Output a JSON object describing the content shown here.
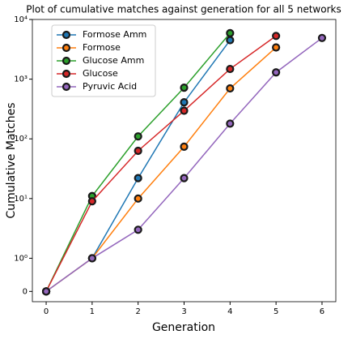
{
  "chart_data": {
    "type": "line",
    "title": "Plot of cumulative matches against generation for all 5 networks",
    "xlabel": "Generation",
    "ylabel": "Cumulative Matches",
    "x": [
      0,
      1,
      2,
      3,
      4,
      5,
      6
    ],
    "series": [
      {
        "name": "Formose Amm",
        "color": "#1f77b4",
        "values": [
          0,
          1,
          22,
          410,
          4500,
          null,
          null
        ]
      },
      {
        "name": "Formose",
        "color": "#ff7f0e",
        "values": [
          0,
          1,
          10,
          74,
          700,
          3400,
          null
        ]
      },
      {
        "name": "Glucose Amm",
        "color": "#2ca02c",
        "values": [
          0,
          11,
          110,
          720,
          5900,
          null,
          null
        ]
      },
      {
        "name": "Glucose",
        "color": "#d62728",
        "values": [
          0,
          9,
          63,
          296,
          1480,
          5300,
          null
        ]
      },
      {
        "name": "Pyruvic Acid",
        "color": "#9467bd",
        "values": [
          0,
          1,
          3,
          22,
          180,
          1300,
          4900
        ]
      }
    ],
    "xlim": [
      -0.3,
      6.3
    ],
    "xticks": [
      0,
      1,
      2,
      3,
      4,
      5,
      6
    ],
    "yscale": "symlog",
    "linthresh": 1,
    "linscale": 0.5,
    "ylim": [
      -0.31,
      10000
    ],
    "yticks": [
      0,
      {
        "value": 1,
        "label": "10⁰"
      },
      {
        "value": 10,
        "label": "10¹"
      },
      {
        "value": 100,
        "label": "10²"
      },
      {
        "value": 1000,
        "label": "10³"
      },
      {
        "value": 10000,
        "label": "10⁴"
      }
    ],
    "legend": "upper left",
    "marker_edge": "#1a1a1a"
  }
}
